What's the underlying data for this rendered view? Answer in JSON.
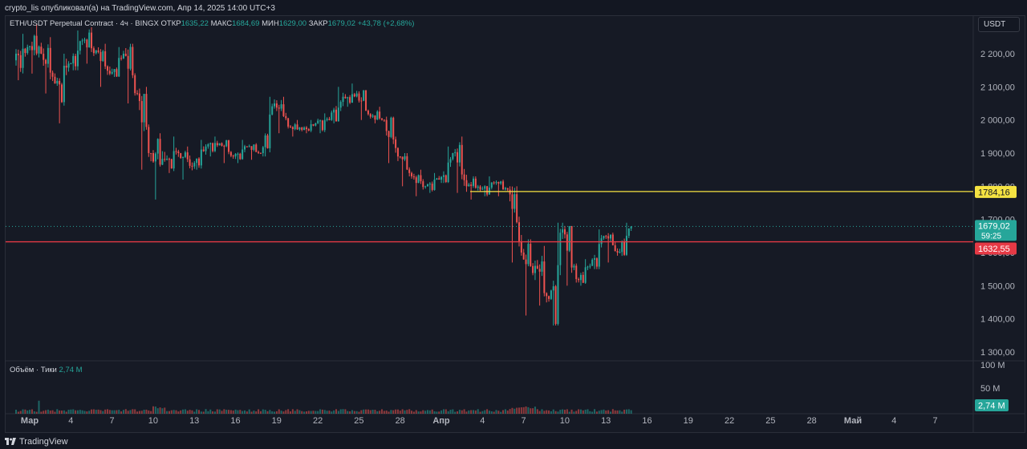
{
  "header": {
    "publisher_line": "crypto_lis опубликовал(а) на TradingView.com, Апр 14, 2025 14:00 UTC+3"
  },
  "legend": {
    "symbol": "ETH/USDT Perpetual Contract · 4ч · BINGX",
    "open_label": "ОТКР",
    "open_value": "1635,22",
    "high_label": "МАКС",
    "high_value": "1684,69",
    "low_label": "МИН",
    "low_value": "1629,00",
    "close_label": "ЗАКР",
    "close_value": "1679,02",
    "change": "+43,78 (+2,68%)"
  },
  "volume_legend": {
    "label": "Объём · Тики",
    "value": "2,74 M"
  },
  "unit_button": "USDT",
  "footer": {
    "brand": "TradingView"
  },
  "colors": {
    "up": "#26a69a",
    "down": "#ef5350",
    "background": "#161a25",
    "yellow_line": "#f5e342",
    "red_line": "#e53945"
  },
  "chart_data": {
    "type": "candlestick",
    "series_name": "ETH/USDT Perpetual Contract",
    "timeframe": "4ч",
    "exchange": "BINGX",
    "y_axis_ticks": [
      "2 200,00",
      "2 100,00",
      "2 000,00",
      "1 900,00",
      "1 800,00",
      "1 700,00",
      "1 600,00",
      "1 500,00",
      "1 400,00",
      "1 300,00"
    ],
    "y_tick_values": [
      2200,
      2100,
      2000,
      1900,
      1800,
      1700,
      1600,
      1500,
      1400,
      1300
    ],
    "ylim": [
      1270,
      2290
    ],
    "x_axis_ticks": [
      "Мар",
      "4",
      "7",
      "10",
      "13",
      "16",
      "19",
      "22",
      "25",
      "28",
      "Апр",
      "4",
      "7",
      "10",
      "13",
      "16",
      "19",
      "22",
      "25",
      "28",
      "Май",
      "4",
      "7"
    ],
    "x_axis_bold": [
      "Мар",
      "Апр",
      "Май"
    ],
    "horizontal_lines": [
      {
        "value": 1784.16,
        "label": "1784,16",
        "color": "#f5e342",
        "start_date_index": 39
      },
      {
        "value": 1632.55,
        "label": "1632,55",
        "color": "#e53945",
        "start_date_index": 0
      }
    ],
    "last_price": {
      "value": 1679.02,
      "label": "1679,02",
      "countdown": "59:25"
    },
    "volume_axis_ticks": [
      "100 M",
      "50 M"
    ],
    "volume_last": "2,74 M",
    "daily_path": [
      {
        "date": "Мар 1",
        "open": 2180,
        "high": 2260,
        "low": 2120,
        "close": 2220
      },
      {
        "date": "Мар 2",
        "open": 2220,
        "high": 2290,
        "low": 2140,
        "close": 2200
      },
      {
        "date": "Мар 3",
        "open": 2200,
        "high": 2250,
        "low": 2080,
        "close": 2110
      },
      {
        "date": "Мар 4",
        "open": 2110,
        "high": 2200,
        "low": 1990,
        "close": 2170
      },
      {
        "date": "Мар 5",
        "open": 2170,
        "high": 2270,
        "low": 2150,
        "close": 2240
      },
      {
        "date": "Мар 6",
        "open": 2240,
        "high": 2280,
        "low": 2170,
        "close": 2210
      },
      {
        "date": "Мар 7",
        "open": 2210,
        "high": 2230,
        "low": 2100,
        "close": 2140
      },
      {
        "date": "Мар 8",
        "open": 2140,
        "high": 2220,
        "low": 2130,
        "close": 2200
      },
      {
        "date": "Мар 9",
        "open": 2200,
        "high": 2230,
        "low": 2050,
        "close": 2080
      },
      {
        "date": "Мар 10",
        "open": 2080,
        "high": 2100,
        "low": 1850,
        "close": 1900
      },
      {
        "date": "Мар 11",
        "open": 1900,
        "high": 1960,
        "low": 1760,
        "close": 1880
      },
      {
        "date": "Мар 12",
        "open": 1880,
        "high": 1950,
        "low": 1840,
        "close": 1900
      },
      {
        "date": "Мар 13",
        "open": 1900,
        "high": 1920,
        "low": 1820,
        "close": 1860
      },
      {
        "date": "Мар 14",
        "open": 1860,
        "high": 1940,
        "low": 1850,
        "close": 1920
      },
      {
        "date": "Мар 15",
        "open": 1920,
        "high": 1950,
        "low": 1890,
        "close": 1930
      },
      {
        "date": "Мар 16",
        "open": 1930,
        "high": 1940,
        "low": 1870,
        "close": 1890
      },
      {
        "date": "Мар 17",
        "open": 1890,
        "high": 1940,
        "low": 1870,
        "close": 1920
      },
      {
        "date": "Мар 18",
        "open": 1920,
        "high": 1930,
        "low": 1880,
        "close": 1900
      },
      {
        "date": "Мар 19",
        "open": 1900,
        "high": 2070,
        "low": 1890,
        "close": 2050
      },
      {
        "date": "Мар 20",
        "open": 2050,
        "high": 2070,
        "low": 1960,
        "close": 1980
      },
      {
        "date": "Мар 21",
        "open": 1980,
        "high": 2000,
        "low": 1950,
        "close": 1970
      },
      {
        "date": "Мар 22",
        "open": 1970,
        "high": 2000,
        "low": 1960,
        "close": 1990
      },
      {
        "date": "Мар 23",
        "open": 1990,
        "high": 2020,
        "low": 1960,
        "close": 2000
      },
      {
        "date": "Мар 24",
        "open": 2000,
        "high": 2100,
        "low": 1990,
        "close": 2070
      },
      {
        "date": "Мар 25",
        "open": 2070,
        "high": 2110,
        "low": 2040,
        "close": 2080
      },
      {
        "date": "Мар 26",
        "open": 2080,
        "high": 2090,
        "low": 2000,
        "close": 2010
      },
      {
        "date": "Мар 27",
        "open": 2010,
        "high": 2040,
        "low": 1990,
        "close": 2000
      },
      {
        "date": "Мар 28",
        "open": 2000,
        "high": 2010,
        "low": 1870,
        "close": 1890
      },
      {
        "date": "Мар 29",
        "open": 1890,
        "high": 1900,
        "low": 1800,
        "close": 1830
      },
      {
        "date": "Мар 30",
        "open": 1830,
        "high": 1850,
        "low": 1770,
        "close": 1800
      },
      {
        "date": "Мар 31",
        "open": 1800,
        "high": 1840,
        "low": 1780,
        "close": 1820
      },
      {
        "date": "Апр 1",
        "open": 1820,
        "high": 1920,
        "low": 1810,
        "close": 1900
      },
      {
        "date": "Апр 2",
        "open": 1900,
        "high": 1950,
        "low": 1780,
        "close": 1800
      },
      {
        "date": "Апр 3",
        "open": 1800,
        "high": 1830,
        "low": 1760,
        "close": 1790
      },
      {
        "date": "Апр 4",
        "open": 1790,
        "high": 1830,
        "low": 1770,
        "close": 1810
      },
      {
        "date": "Апр 5",
        "open": 1810,
        "high": 1820,
        "low": 1770,
        "close": 1790
      },
      {
        "date": "Апр 6",
        "open": 1790,
        "high": 1800,
        "low": 1570,
        "close": 1600
      },
      {
        "date": "Апр 7",
        "open": 1600,
        "high": 1640,
        "low": 1410,
        "close": 1560
      },
      {
        "date": "Апр 8",
        "open": 1560,
        "high": 1620,
        "low": 1440,
        "close": 1460
      },
      {
        "date": "Апр 9",
        "open": 1460,
        "high": 1690,
        "low": 1380,
        "close": 1670
      },
      {
        "date": "Апр 10",
        "open": 1670,
        "high": 1680,
        "low": 1500,
        "close": 1520
      },
      {
        "date": "Апр 11",
        "open": 1520,
        "high": 1580,
        "low": 1500,
        "close": 1560
      },
      {
        "date": "Апр 12",
        "open": 1560,
        "high": 1670,
        "low": 1550,
        "close": 1650
      },
      {
        "date": "Апр 13",
        "open": 1650,
        "high": 1660,
        "low": 1570,
        "close": 1600
      },
      {
        "date": "Апр 14",
        "open": 1600,
        "high": 1690,
        "low": 1590,
        "close": 1679
      }
    ]
  }
}
